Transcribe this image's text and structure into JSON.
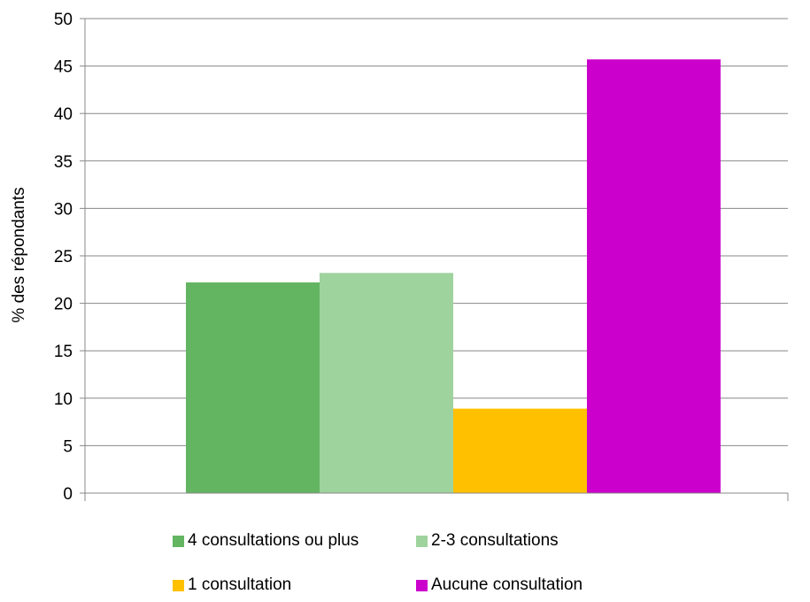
{
  "chart_data": {
    "type": "bar",
    "title": "",
    "xlabel": "",
    "ylabel": "% des répondants",
    "ylim": [
      0,
      50
    ],
    "yticks": [
      0,
      5,
      10,
      15,
      20,
      25,
      30,
      35,
      40,
      45,
      50
    ],
    "grid": true,
    "legend_position": "bottom",
    "series": [
      {
        "name": "4 consultations ou plus",
        "value": 22.2,
        "color": "#63B562"
      },
      {
        "name": "2-3 consultations",
        "value": 23.2,
        "color": "#9FD39E"
      },
      {
        "name": "1 consultation",
        "value": 8.9,
        "color": "#FFC000"
      },
      {
        "name": "Aucune consultation",
        "value": 45.7,
        "color": "#CC00CC"
      }
    ]
  }
}
